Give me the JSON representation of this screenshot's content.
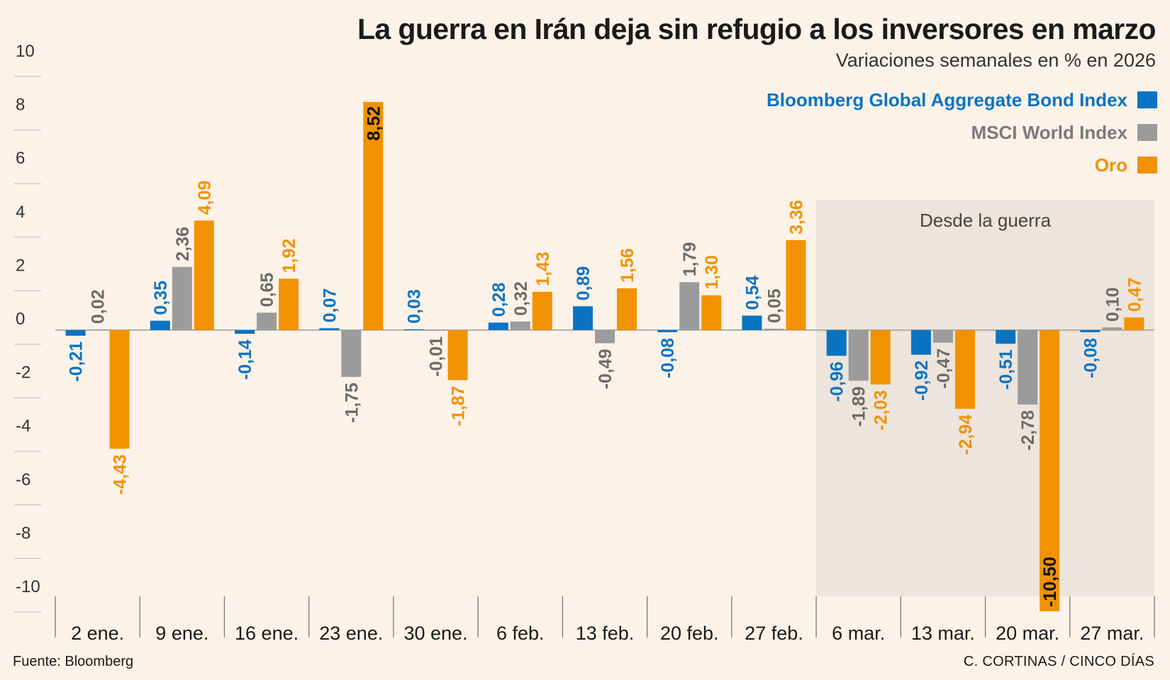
{
  "header": {
    "title": "La guerra en Irán deja sin refugio a los inversores en marzo",
    "subtitle": "Variaciones semanales en % en 2026"
  },
  "legend": [
    {
      "label": "Bloomberg Global Aggregate Bond Index",
      "color": "#0a74c2"
    },
    {
      "label": "MSCI World Index",
      "color": "#9b9b9b"
    },
    {
      "label": "Oro",
      "color": "#f29200"
    }
  ],
  "annotation": {
    "label": "Desde la guerra",
    "from_category": "6 mar.",
    "to_category": "27 mar."
  },
  "footer": {
    "source": "Fuente: Bloomberg",
    "credit": "C. CORTINAS / CINCO DÍAS"
  },
  "chart_data": {
    "type": "bar",
    "title": "La guerra en Irán deja sin refugio a los inversores en marzo",
    "subtitle": "Variaciones semanales en % en 2026",
    "xlabel": "",
    "ylabel": "",
    "ylim": [
      -10,
      10
    ],
    "yticks": [
      "10",
      "8",
      "6",
      "4",
      "2",
      "0",
      "-2",
      "-4",
      "-6",
      "-8",
      "-10"
    ],
    "categories": [
      "2 ene.",
      "9 ene.",
      "16 ene.",
      "23 ene.",
      "30 ene.",
      "6 feb.",
      "13 feb.",
      "20 feb.",
      "27 feb.",
      "6 mar.",
      "13 mar.",
      "20 mar.",
      "27 mar."
    ],
    "series": [
      {
        "name": "Bloomberg Global Aggregate Bond Index",
        "color": "#0a74c2",
        "values": [
          -0.21,
          0.35,
          -0.14,
          0.07,
          0.03,
          0.28,
          0.89,
          -0.08,
          0.54,
          -0.96,
          -0.92,
          -0.51,
          -0.08
        ],
        "labels": [
          "-0,21",
          "0,35",
          "-0,14",
          "0,07",
          "0,03",
          "0,28",
          "0,89",
          "-0,08",
          "0,54",
          "-0,96",
          "-0,92",
          "-0,51",
          "-0,08"
        ]
      },
      {
        "name": "MSCI World Index",
        "color": "#9b9b9b",
        "values": [
          0.02,
          2.36,
          0.65,
          -1.75,
          -0.01,
          0.32,
          -0.49,
          1.79,
          0.05,
          -1.89,
          -0.47,
          -2.78,
          0.1
        ],
        "labels": [
          "0,02",
          "2,36",
          "0,65",
          "-1,75",
          "-0,01",
          "0,32",
          "-0,49",
          "1,79",
          "0,05",
          "-1,89",
          "-0,47",
          "-2,78",
          "0,10"
        ]
      },
      {
        "name": "Oro",
        "color": "#f29200",
        "values": [
          -4.43,
          4.09,
          1.92,
          8.52,
          -1.87,
          1.43,
          1.56,
          1.3,
          3.36,
          -2.03,
          -2.94,
          -10.5,
          0.47
        ],
        "labels": [
          "-4,43",
          "4,09",
          "1,92",
          "8,52",
          "-1,87",
          "1,43",
          "1,56",
          "1,30",
          "3,36",
          "-2,03",
          "-2,94",
          "-10,50",
          "0,47"
        ]
      }
    ]
  }
}
